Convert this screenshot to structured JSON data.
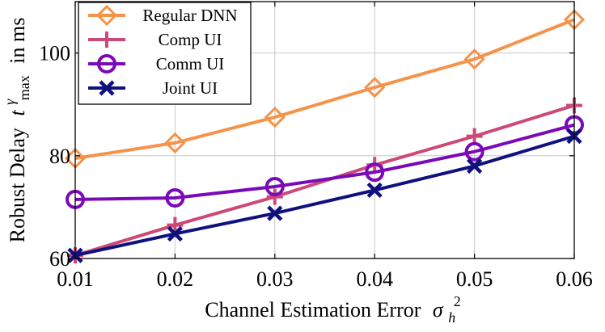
{
  "chart_data": {
    "type": "line",
    "x": [
      0.01,
      0.02,
      0.03,
      0.04,
      0.05,
      0.06
    ],
    "x_tick_labels": [
      "0.01",
      "0.02",
      "0.03",
      "0.04",
      "0.05",
      "0.06"
    ],
    "y_ticks": [
      60,
      80,
      100
    ],
    "y_tick_labels": [
      "60",
      "80",
      "100"
    ],
    "xlim": [
      0.01,
      0.06
    ],
    "ylim": [
      60,
      110
    ],
    "grid": true,
    "legend_position": "top-left",
    "xlabel_text": "Channel Estimation Error",
    "xlabel_math": "σ",
    "xlabel_math_sub": "h",
    "xlabel_math_sup": "2",
    "ylabel_text_before": "Robust Delay",
    "ylabel_math": "t",
    "ylabel_math_sup": "γ",
    "ylabel_math_sub": "max",
    "ylabel_text_after": "in ms",
    "series": [
      {
        "name": "Regular DNN",
        "color": "#f6934a",
        "marker": "diamond",
        "values": [
          79.5,
          82.5,
          87.5,
          93.3,
          98.8,
          106.5
        ]
      },
      {
        "name": "Comp UI",
        "color": "#cc4977",
        "marker": "plus",
        "values": [
          60.6,
          66.5,
          72.0,
          78.2,
          83.8,
          89.8
        ]
      },
      {
        "name": "Comm UI",
        "color": "#7a0ab8",
        "marker": "circle",
        "values": [
          71.5,
          71.8,
          74.0,
          76.8,
          80.8,
          86.0
        ]
      },
      {
        "name": "Joint UI",
        "color": "#10107f",
        "marker": "cross",
        "values": [
          60.6,
          64.8,
          68.8,
          73.3,
          78.0,
          83.8
        ]
      }
    ]
  }
}
